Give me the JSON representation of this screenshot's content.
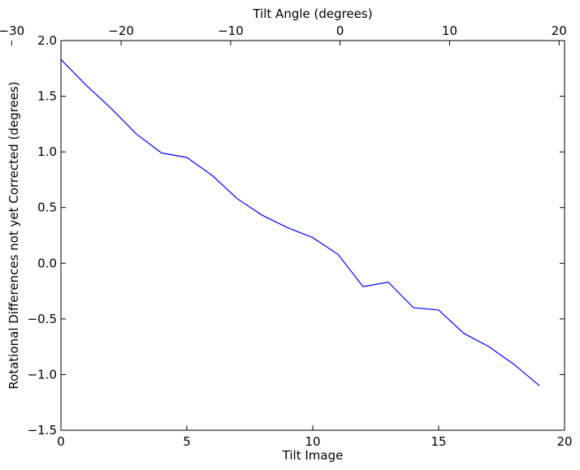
{
  "chart_data": {
    "type": "line",
    "title": "",
    "xlabel": "Tilt Image",
    "ylabel": "Rotational Differences not yet Corrected (degrees)",
    "top_xlabel": "Tilt Angle (degrees)",
    "xlim": [
      0,
      20
    ],
    "ylim": [
      -1.5,
      2.0
    ],
    "top_xlim": [
      -25.5,
      20.5
    ],
    "xticks": [
      0,
      5,
      10,
      15,
      20
    ],
    "xtick_labels": [
      "0",
      "5",
      "10",
      "15",
      "20"
    ],
    "yticks": [
      -1.5,
      -1.0,
      -0.5,
      0.0,
      0.5,
      1.0,
      1.5,
      2.0
    ],
    "ytick_labels": [
      "−1.5",
      "−1.0",
      "−0.5",
      "0.0",
      "0.5",
      "1.0",
      "1.5",
      "2.0"
    ],
    "top_xticks": [
      -30,
      -20,
      -10,
      0,
      10,
      20
    ],
    "top_xtick_labels": [
      "−30",
      "−20",
      "−10",
      "0",
      "10",
      "20"
    ],
    "grid": false,
    "legend": "none",
    "series": [
      {
        "color": "#0000ff",
        "x": [
          0,
          1,
          2,
          3,
          4,
          5,
          6,
          7,
          8,
          9,
          10,
          11,
          12,
          13,
          14,
          15,
          16,
          17,
          18,
          19
        ],
        "y": [
          1.83,
          1.6,
          1.39,
          1.16,
          0.99,
          0.95,
          0.79,
          0.58,
          0.43,
          0.32,
          0.23,
          0.08,
          -0.21,
          -0.17,
          -0.4,
          -0.42,
          -0.63,
          -0.75,
          -0.91,
          -1.1
        ]
      }
    ]
  }
}
